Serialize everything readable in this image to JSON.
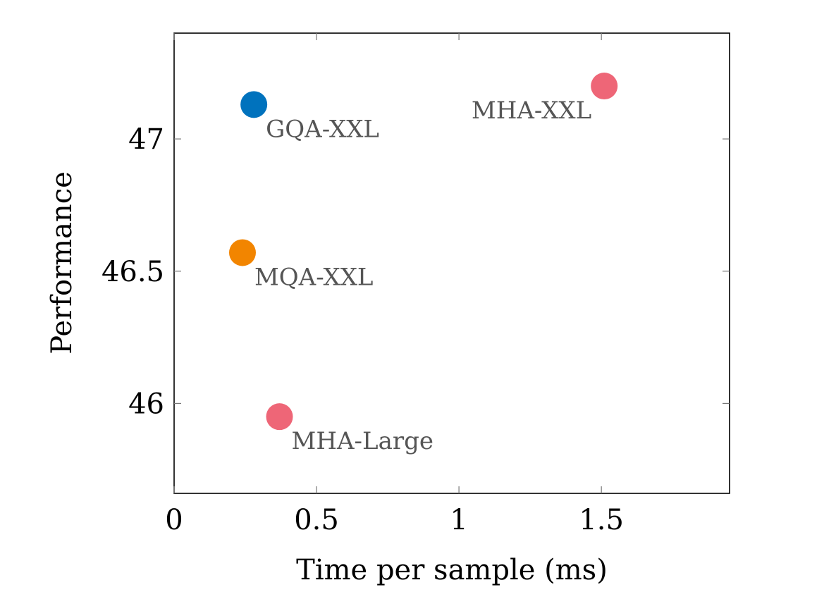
{
  "chart_data": {
    "type": "scatter",
    "xlabel": "Time per sample (ms)",
    "ylabel": "Performance",
    "xlim": [
      0,
      1.95
    ],
    "ylim": [
      45.66,
      47.4
    ],
    "xticks": [
      0,
      0.5,
      1,
      1.5
    ],
    "xtick_labels": [
      "0",
      "0.5",
      "1",
      "1.5"
    ],
    "yticks": [
      46,
      46.5,
      47
    ],
    "ytick_labels": [
      "46",
      "46.5",
      "47"
    ],
    "grid": false,
    "points": [
      {
        "label": "GQA-XXL",
        "x": 0.28,
        "y": 47.13,
        "color": "#0072BD",
        "label_pos": "below-right"
      },
      {
        "label": "MHA-XXL",
        "x": 1.51,
        "y": 47.2,
        "color": "#EE6677",
        "label_pos": "below-left"
      },
      {
        "label": "MQA-XXL",
        "x": 0.24,
        "y": 46.57,
        "color": "#F28500",
        "label_pos": "below-right"
      },
      {
        "label": "MHA-Large",
        "x": 0.37,
        "y": 45.95,
        "color": "#EE6677",
        "label_pos": "below-right"
      }
    ]
  }
}
